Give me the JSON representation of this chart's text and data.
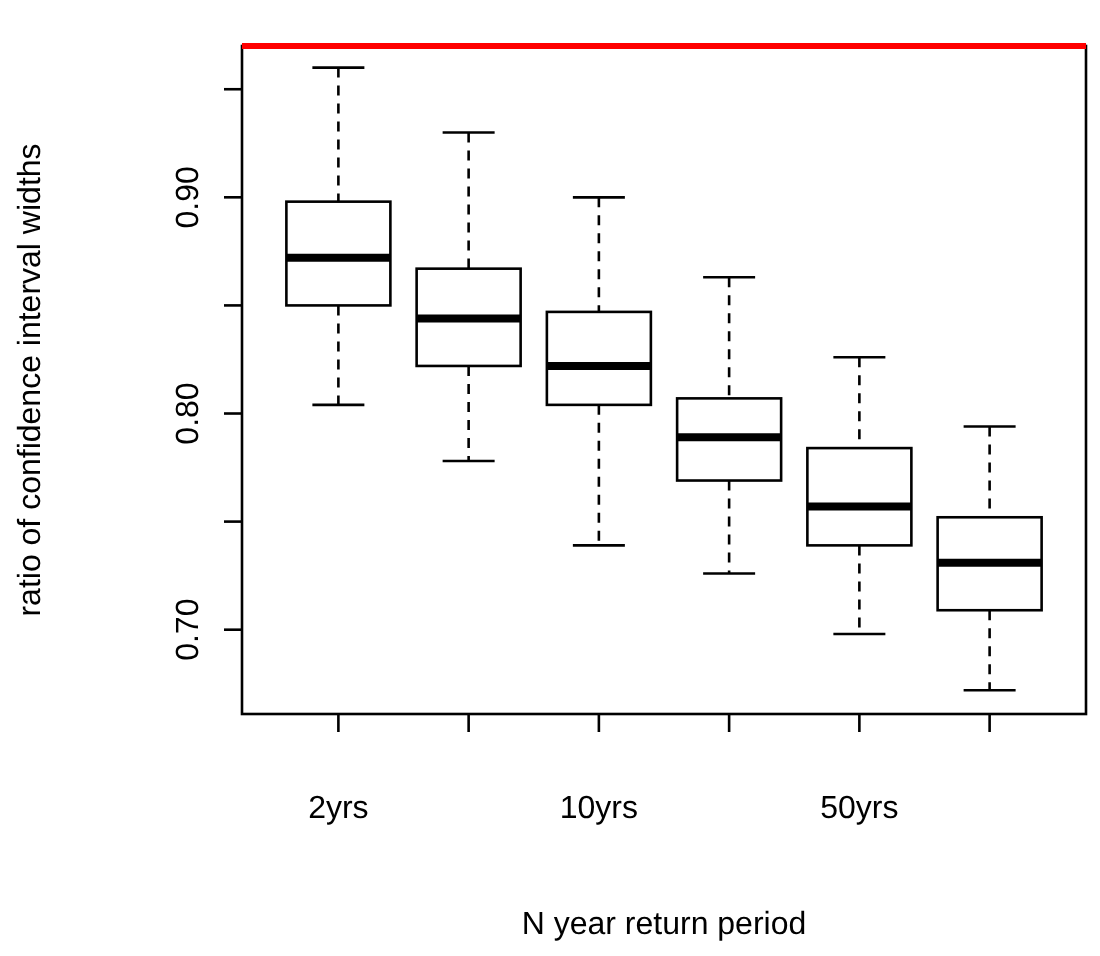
{
  "chart_data": {
    "type": "box",
    "xlabel": "N year return period",
    "ylabel": "ratio of confidence interval widths",
    "categories": [
      "2yrs",
      null,
      "10yrs",
      null,
      "50yrs",
      null
    ],
    "boxes": [
      {
        "low": 0.804,
        "q1": 0.85,
        "median": 0.872,
        "q3": 0.898,
        "high": 0.96
      },
      {
        "low": 0.778,
        "q1": 0.822,
        "median": 0.844,
        "q3": 0.867,
        "high": 0.93
      },
      {
        "low": 0.739,
        "q1": 0.804,
        "median": 0.822,
        "q3": 0.847,
        "high": 0.9
      },
      {
        "low": 0.726,
        "q1": 0.769,
        "median": 0.789,
        "q3": 0.807,
        "high": 0.863
      },
      {
        "low": 0.698,
        "q1": 0.739,
        "median": 0.757,
        "q3": 0.784,
        "high": 0.826
      },
      {
        "low": 0.672,
        "q1": 0.709,
        "median": 0.731,
        "q3": 0.752,
        "high": 0.794
      }
    ],
    "ylim": [
      0.661,
      0.97
    ],
    "yticks": [
      {
        "value": 0.7,
        "label": "0.70"
      },
      {
        "value": 0.75,
        "label": null
      },
      {
        "value": 0.8,
        "label": "0.80"
      },
      {
        "value": 0.85,
        "label": null
      },
      {
        "value": 0.9,
        "label": "0.90"
      },
      {
        "value": 0.95,
        "label": null
      }
    ],
    "ref_lines": [
      {
        "axis": "y",
        "value": 0.97,
        "color": "#ff0000"
      }
    ],
    "grid": false
  }
}
